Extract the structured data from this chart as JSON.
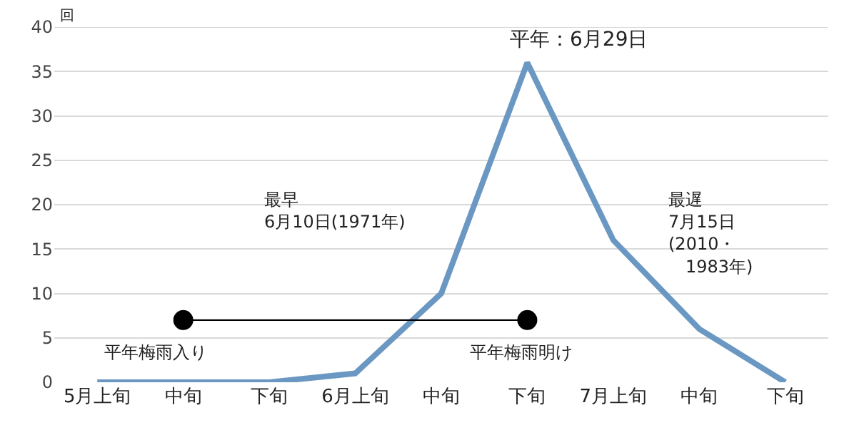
{
  "chart_data": {
    "type": "line",
    "ylabel": "回",
    "categories": [
      "5月上旬",
      "中旬",
      "下旬",
      "6月上旬",
      "中旬",
      "下旬",
      "7月上旬",
      "中旬",
      "下旬"
    ],
    "series": [
      {
        "color": "#6b98c2",
        "values": [
          0,
          0,
          0,
          1,
          10,
          36,
          16,
          6,
          0
        ],
        "marker": "none"
      },
      {
        "color": "#000000",
        "values": [
          null,
          7,
          null,
          null,
          null,
          7,
          null,
          null,
          null
        ],
        "marker": "circle"
      }
    ],
    "ylim": [
      0,
      40
    ],
    "yticks": [
      0,
      5,
      10,
      15,
      20,
      25,
      30,
      35,
      40
    ],
    "grid": "y",
    "annotations": [
      "平年：6月29日",
      "最早\n6月10日(1971年)",
      "最遅\n7月15日\n(2010・\n　1983年)",
      "平年梅雨入り",
      "平年梅雨明け"
    ]
  }
}
